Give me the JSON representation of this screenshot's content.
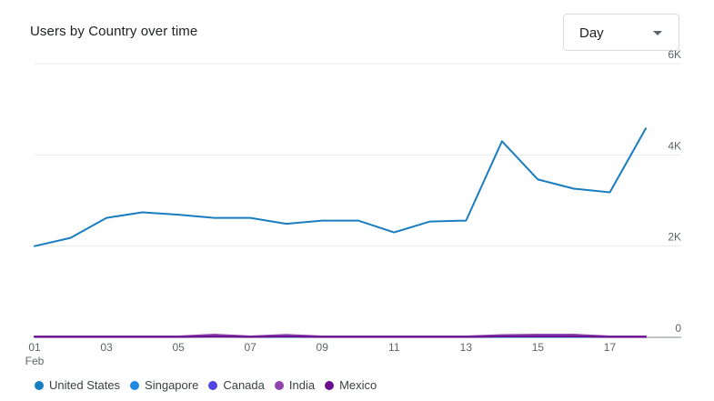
{
  "card": {
    "title": "Users by Country over time"
  },
  "dropdown": {
    "selected": "Day",
    "icon": "arrow-drop-down-icon"
  },
  "chart_data": {
    "type": "line",
    "title": "Users by Country over time",
    "x_tick_labels": [
      "01",
      "03",
      "05",
      "07",
      "09",
      "11",
      "13",
      "15",
      "17"
    ],
    "x_month_label": "Feb",
    "x": [
      1,
      2,
      3,
      4,
      5,
      6,
      7,
      8,
      9,
      10,
      11,
      12,
      13,
      14,
      15,
      16,
      17,
      18
    ],
    "y_tick_labels": [
      "0",
      "2K",
      "4K",
      "6K"
    ],
    "ylim": [
      0,
      6000
    ],
    "y_ticks": [
      0,
      2000,
      4000,
      6000
    ],
    "grid": true,
    "y_axis_position": "right",
    "legend_position": "bottom-left",
    "series": [
      {
        "name": "United States",
        "color": "#1a7dc0",
        "values": [
          2000,
          2180,
          2620,
          2740,
          2690,
          2620,
          2620,
          2490,
          2560,
          2560,
          2300,
          2540,
          2560,
          4300,
          3460,
          3260,
          3180,
          4580
        ]
      },
      {
        "name": "Singapore",
        "color": "#1e88e5",
        "values": [
          10,
          10,
          10,
          10,
          10,
          20,
          15,
          10,
          10,
          10,
          10,
          10,
          10,
          10,
          10,
          10,
          10,
          10
        ]
      },
      {
        "name": "Canada",
        "color": "#4f46e5",
        "values": [
          15,
          15,
          15,
          15,
          15,
          30,
          20,
          25,
          15,
          15,
          15,
          15,
          15,
          30,
          40,
          30,
          20,
          15
        ]
      },
      {
        "name": "India",
        "color": "#8e44ad",
        "values": [
          20,
          20,
          20,
          20,
          20,
          60,
          20,
          55,
          20,
          20,
          20,
          20,
          20,
          50,
          60,
          60,
          20,
          20
        ]
      },
      {
        "name": "Mexico",
        "color": "#6a0f8e",
        "values": [
          10,
          10,
          10,
          10,
          10,
          20,
          10,
          20,
          10,
          10,
          10,
          10,
          10,
          20,
          20,
          20,
          10,
          10
        ]
      }
    ]
  }
}
